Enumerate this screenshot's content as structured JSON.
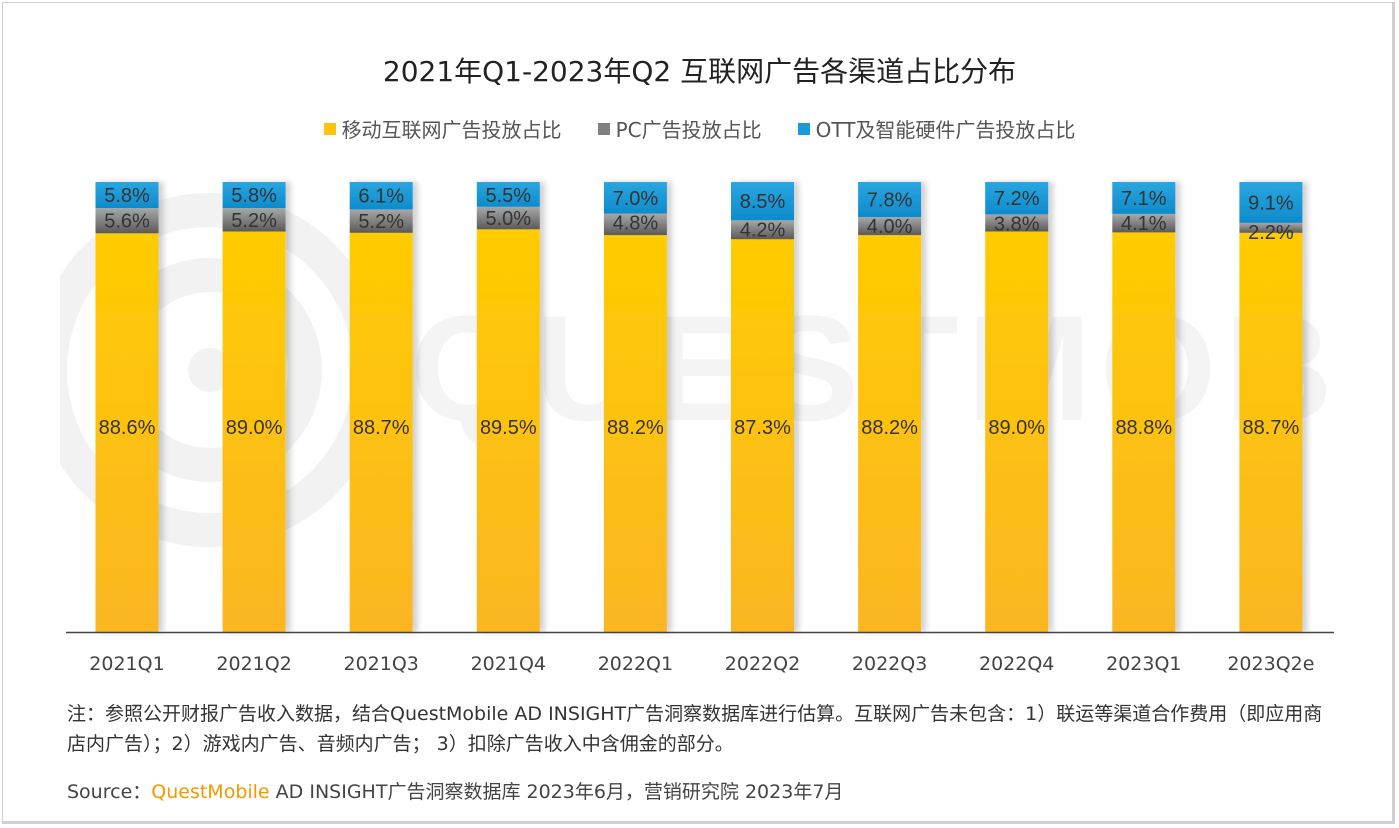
{
  "chart_data": {
    "type": "bar",
    "stacked": true,
    "title": "2021年Q1-2023年Q2 互联网广告各渠道占比分布",
    "xlabel": "",
    "ylabel": "",
    "ylim": [
      0,
      100
    ],
    "grid": false,
    "legend_position": "top-center",
    "categories": [
      "2021Q1",
      "2021Q2",
      "2021Q3",
      "2021Q4",
      "2022Q1",
      "2022Q2",
      "2022Q3",
      "2022Q4",
      "2023Q1",
      "2023Q2e"
    ],
    "series": [
      {
        "name": "移动互联网广告投放占比",
        "color": "#ffc20e",
        "values": [
          88.6,
          89.0,
          88.7,
          89.5,
          88.2,
          87.3,
          88.2,
          89.0,
          88.8,
          88.7
        ],
        "labels": [
          "88.6%",
          "89.0%",
          "88.7%",
          "89.5%",
          "88.2%",
          "87.3%",
          "88.2%",
          "89.0%",
          "88.8%",
          "88.7%"
        ]
      },
      {
        "name": "PC广告投放占比",
        "color": "#808080",
        "values": [
          5.6,
          5.2,
          5.2,
          5.0,
          4.8,
          4.2,
          4.0,
          3.8,
          4.1,
          2.2
        ],
        "labels": [
          "5.6%",
          "5.2%",
          "5.2%",
          "5.0%",
          "4.8%",
          "4.2%",
          "4.0%",
          "3.8%",
          "4.1%",
          "2.2%"
        ]
      },
      {
        "name": "OTT及智能硬件广告投放占比",
        "color": "#1a9ad9",
        "values": [
          5.8,
          5.8,
          6.1,
          5.5,
          7.0,
          8.5,
          7.8,
          7.2,
          7.1,
          9.1
        ],
        "labels": [
          "5.8%",
          "5.8%",
          "6.1%",
          "5.5%",
          "7.0%",
          "8.5%",
          "7.8%",
          "7.2%",
          "7.1%",
          "9.1%"
        ]
      }
    ]
  },
  "watermark": "QUESTMOBILE",
  "note": "注：参照公开财报广告收入数据，结合QuestMobile AD INSIGHT广告洞察数据库进行估算。互联网广告未包含：1）联运等渠道合作费用（即应用商店内广告）；2）游戏内广告、音频内广告； 3）扣除广告收入中含佣金的部分。",
  "source": {
    "prefix": "Source：",
    "brand": "QuestMobile",
    "rest": " AD INSIGHT广告洞察数据库 2023年6月，营销研究院 2023年7月"
  }
}
